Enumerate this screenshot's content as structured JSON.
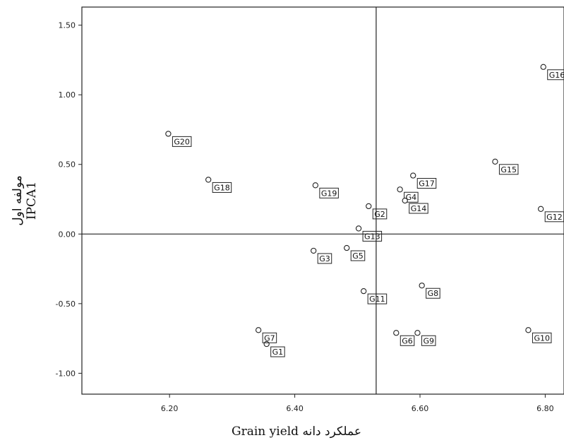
{
  "chart_data": {
    "type": "scatter",
    "xlabel": "عملکرد دانه  Grain yield",
    "ylabel_line1": "مولفه اول",
    "ylabel_line2": "IPCA1",
    "xlim": [
      6.06,
      6.83
    ],
    "ylim": [
      -1.15,
      1.63
    ],
    "x_ticks": [
      {
        "value": 6.2,
        "label": "6.20"
      },
      {
        "value": 6.4,
        "label": "6.40"
      },
      {
        "value": 6.6,
        "label": "6.60"
      },
      {
        "value": 6.8,
        "label": "6.80"
      }
    ],
    "y_ticks": [
      {
        "value": 1.5,
        "label": "1.50"
      },
      {
        "value": 1.0,
        "label": "1.00"
      },
      {
        "value": 0.5,
        "label": "0.50"
      },
      {
        "value": 0.0,
        "label": "0.00"
      },
      {
        "value": -0.5,
        "label": "-0.50"
      },
      {
        "value": -1.0,
        "label": "-1.00"
      }
    ],
    "reference_lines": {
      "x": 6.53,
      "y": 0.0
    },
    "grid": false,
    "points": [
      {
        "label": "G1",
        "x": 6.355,
        "y": -0.79
      },
      {
        "label": "G2",
        "x": 6.518,
        "y": 0.2
      },
      {
        "label": "G3",
        "x": 6.43,
        "y": -0.12
      },
      {
        "label": "G4",
        "x": 6.568,
        "y": 0.32
      },
      {
        "label": "G5",
        "x": 6.483,
        "y": -0.1
      },
      {
        "label": "G6",
        "x": 6.562,
        "y": -0.71
      },
      {
        "label": "G7",
        "x": 6.342,
        "y": -0.69
      },
      {
        "label": "G8",
        "x": 6.603,
        "y": -0.37
      },
      {
        "label": "G9",
        "x": 6.596,
        "y": -0.71
      },
      {
        "label": "G10",
        "x": 6.773,
        "y": -0.69
      },
      {
        "label": "G11",
        "x": 6.51,
        "y": -0.41
      },
      {
        "label": "G12",
        "x": 6.793,
        "y": 0.18
      },
      {
        "label": "G13",
        "x": 6.502,
        "y": 0.04
      },
      {
        "label": "G14",
        "x": 6.576,
        "y": 0.24
      },
      {
        "label": "G15",
        "x": 6.72,
        "y": 0.52
      },
      {
        "label": "G16",
        "x": 6.797,
        "y": 1.2
      },
      {
        "label": "G17",
        "x": 6.589,
        "y": 0.42
      },
      {
        "label": "G18",
        "x": 6.262,
        "y": 0.39
      },
      {
        "label": "G19",
        "x": 6.433,
        "y": 0.35
      },
      {
        "label": "G20",
        "x": 6.198,
        "y": 0.72
      }
    ]
  }
}
